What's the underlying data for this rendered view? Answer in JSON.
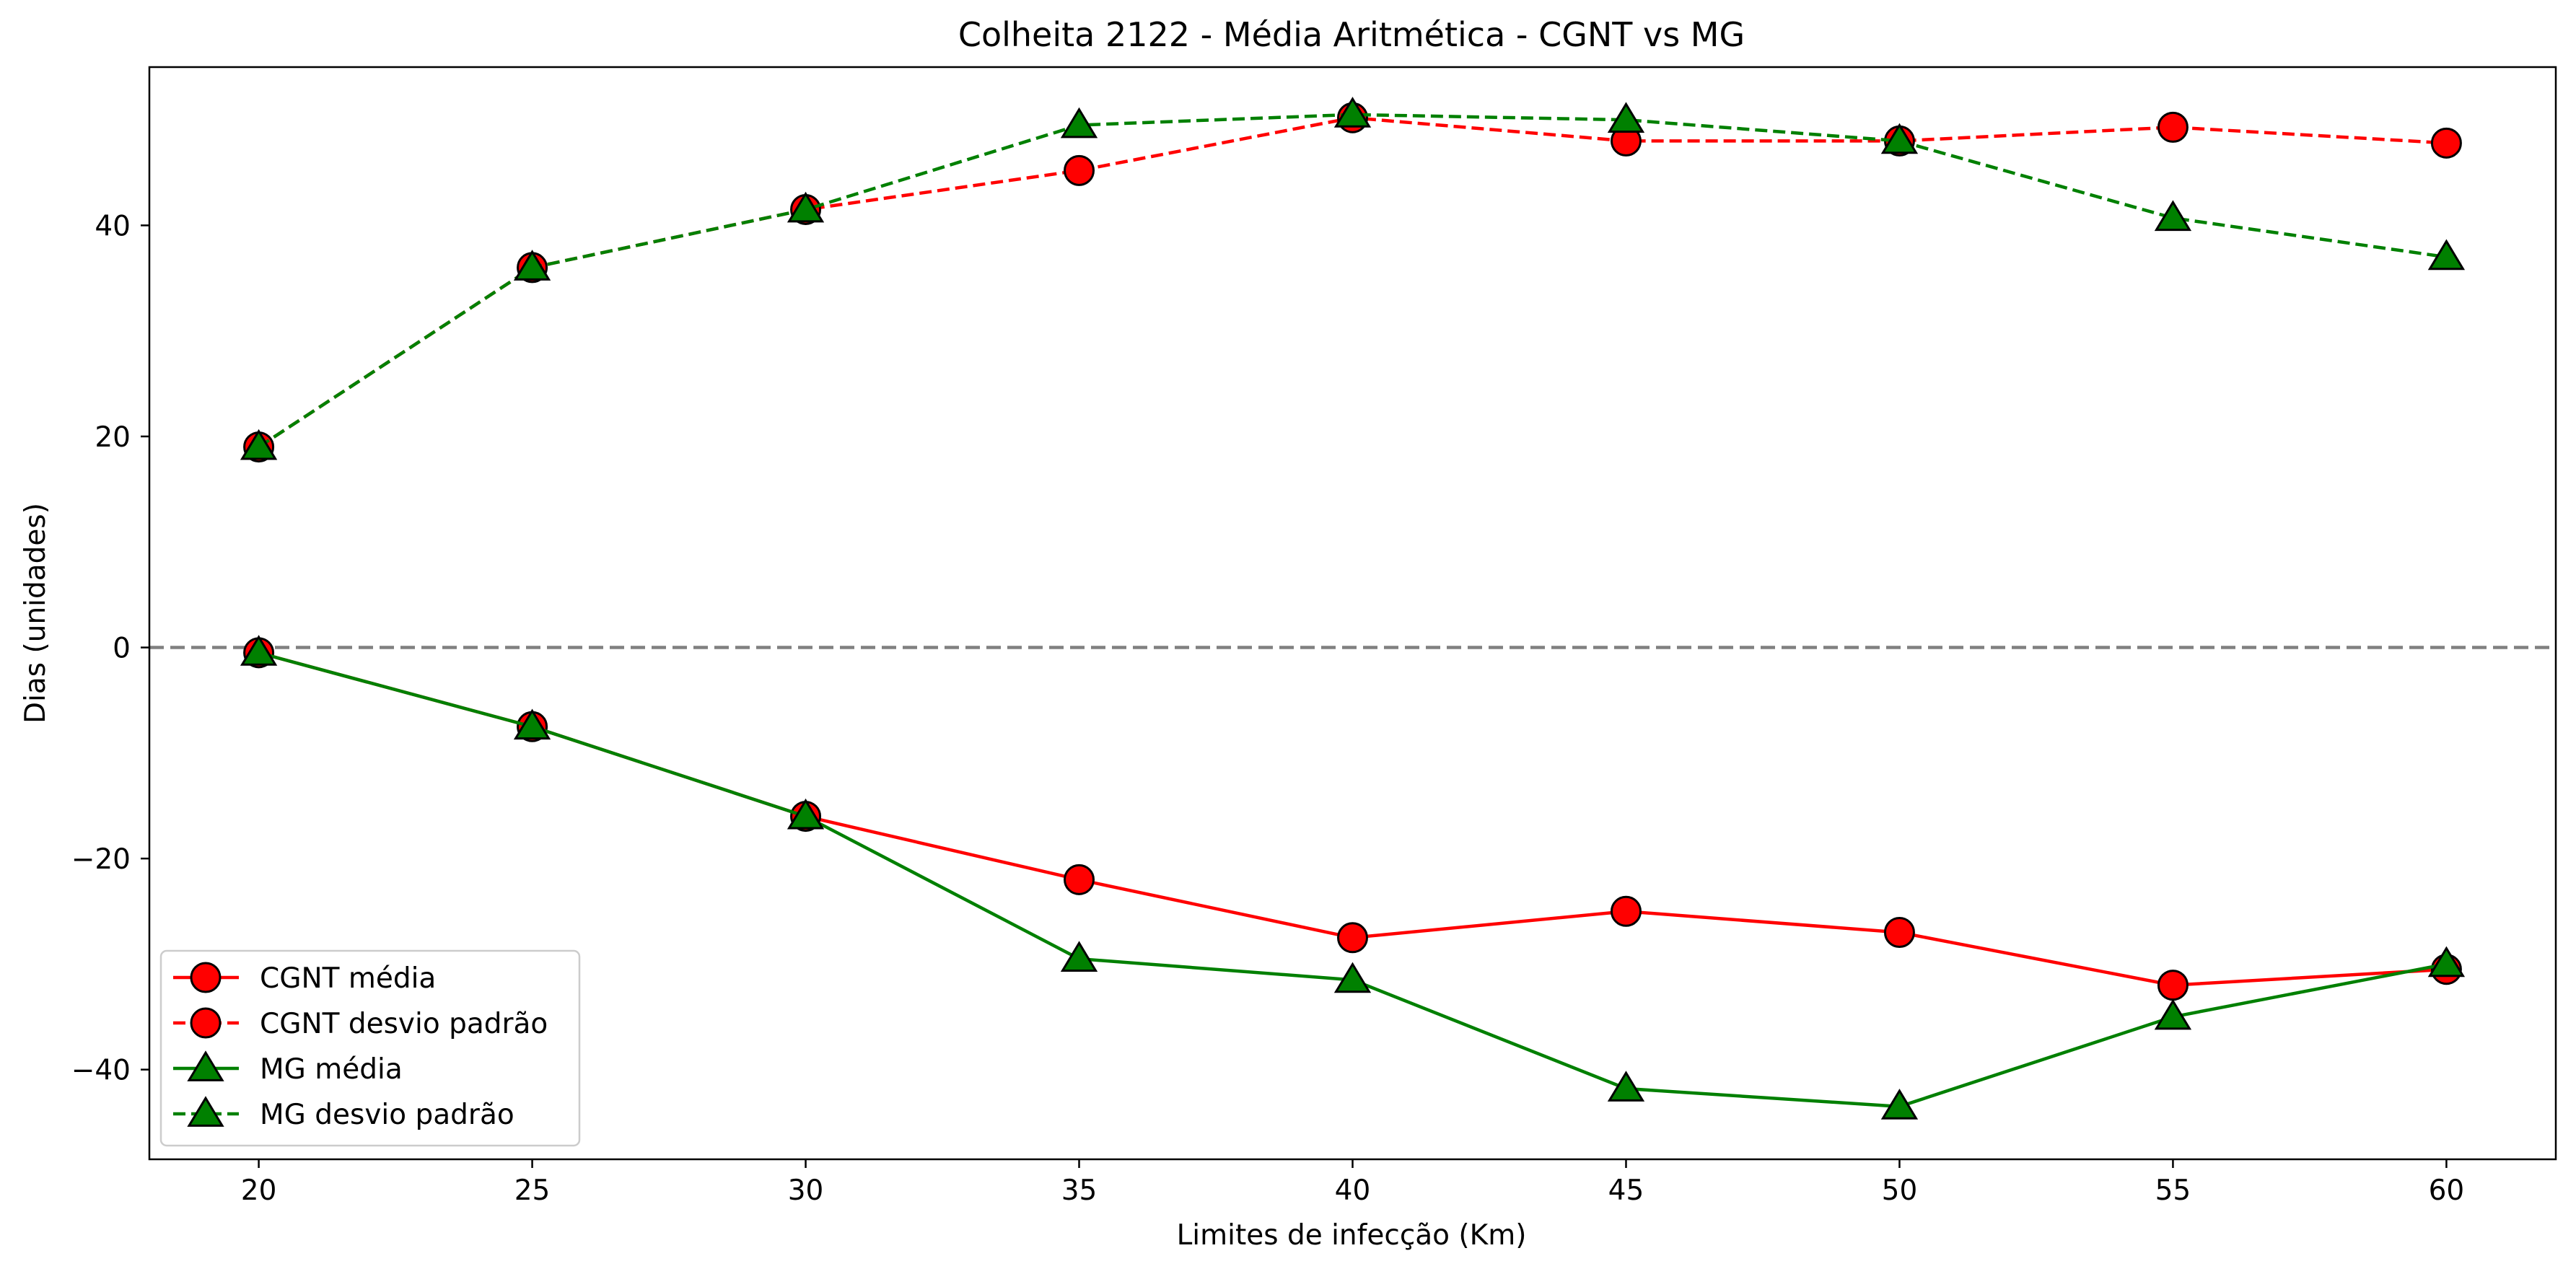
{
  "chart_data": {
    "type": "line",
    "title": "Colheita 2122 - Média Aritmética - CGNT vs MG",
    "xlabel": "Limites de infecção (Km)",
    "ylabel": "Dias (unidades)",
    "x": [
      20,
      25,
      30,
      35,
      40,
      45,
      50,
      55,
      60
    ],
    "xlim": [
      18,
      62
    ],
    "ylim": [
      -48.5,
      55
    ],
    "xticks": [
      "20",
      "25",
      "30",
      "35",
      "40",
      "45",
      "50",
      "55",
      "60"
    ],
    "yticks": [
      "−40",
      "−20",
      "0",
      "20",
      "40"
    ],
    "ytick_values": [
      -40,
      -20,
      0,
      20,
      40
    ],
    "reference_line": {
      "y": 0,
      "style": "dashed",
      "color": "#808080"
    },
    "grid": false,
    "legend_position": "lower-left",
    "series": [
      {
        "name": "CGNT média",
        "values": [
          -0.5,
          -7.5,
          -16,
          -22,
          -27.5,
          -25,
          -27,
          -32,
          -30.5
        ],
        "color": "#ff0000",
        "line": "solid",
        "marker": "circle"
      },
      {
        "name": "CGNT desvio padrão",
        "values": [
          19,
          36,
          41.5,
          45.2,
          50.2,
          48,
          48,
          49.3,
          47.8
        ],
        "color": "#ff0000",
        "line": "dashed",
        "marker": "circle"
      },
      {
        "name": "MG média",
        "values": [
          -0.5,
          -7.5,
          -16,
          -29.5,
          -31.5,
          -41.8,
          -43.5,
          -35,
          -30
        ],
        "color": "#008000",
        "line": "solid",
        "marker": "triangle"
      },
      {
        "name": "MG desvio padrão",
        "values": [
          19,
          36,
          41.5,
          49.5,
          50.5,
          50,
          48,
          40.7,
          37
        ],
        "color": "#008000",
        "line": "dashed",
        "marker": "triangle"
      }
    ]
  }
}
